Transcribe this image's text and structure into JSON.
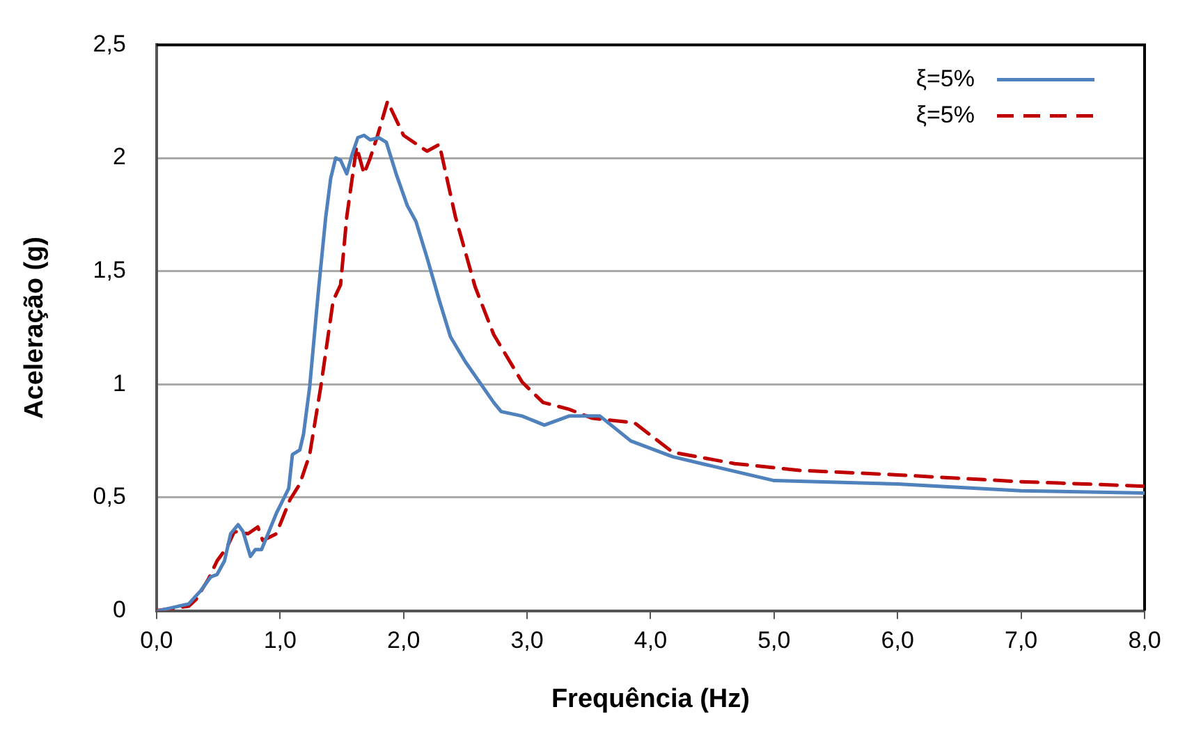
{
  "chart_data": {
    "type": "line",
    "xlabel": "Frequência (Hz)",
    "ylabel": "Aceleração (g)",
    "xlim": [
      0,
      8
    ],
    "ylim": [
      0,
      2.5
    ],
    "xticks": [
      {
        "value": 0,
        "label": "0,0"
      },
      {
        "value": 1,
        "label": "1,0"
      },
      {
        "value": 2,
        "label": "2,0"
      },
      {
        "value": 3,
        "label": "3,0"
      },
      {
        "value": 4,
        "label": "4,0"
      },
      {
        "value": 5,
        "label": "5,0"
      },
      {
        "value": 6,
        "label": "6,0"
      },
      {
        "value": 7,
        "label": "7,0"
      },
      {
        "value": 8,
        "label": "8,0"
      }
    ],
    "yticks": [
      0,
      {
        "value": 0.5,
        "label": "0,5"
      },
      1,
      {
        "value": 1.5,
        "label": "1,5"
      },
      2,
      {
        "value": 2.5,
        "label": "2,5"
      }
    ],
    "grid": "y",
    "legend": "top right",
    "marker": "none",
    "series": [
      {
        "name": "ξ=5%",
        "color": "#4f81bd",
        "line_style": "solid",
        "x": [
          0.015,
          0.26,
          0.36,
          0.44,
          0.49,
          0.55,
          0.6,
          0.66,
          0.7,
          0.76,
          0.8,
          0.85,
          0.97,
          1.07,
          1.1,
          1.16,
          1.19,
          1.24,
          1.31,
          1.37,
          1.41,
          1.45,
          1.49,
          1.54,
          1.58,
          1.63,
          1.68,
          1.73,
          1.8,
          1.86,
          1.94,
          2.03,
          2.1,
          2.19,
          2.29,
          2.38,
          2.5,
          2.73,
          2.79,
          2.96,
          3.14,
          3.34,
          3.59,
          3.84,
          4.18,
          4.49,
          5.0,
          6.0,
          7.0,
          8.0
        ],
        "values": [
          0,
          0.03,
          0.09,
          0.15,
          0.16,
          0.22,
          0.34,
          0.38,
          0.35,
          0.24,
          0.27,
          0.27,
          0.43,
          0.54,
          0.69,
          0.71,
          0.78,
          0.99,
          1.41,
          1.74,
          1.91,
          2.0,
          1.99,
          1.93,
          2.01,
          2.09,
          2.1,
          2.08,
          2.09,
          2.07,
          1.93,
          1.79,
          1.72,
          1.56,
          1.37,
          1.21,
          1.1,
          0.92,
          0.88,
          0.86,
          0.82,
          0.86,
          0.86,
          0.75,
          0.68,
          0.64,
          0.575,
          0.56,
          0.53,
          0.52
        ]
      },
      {
        "name": "ξ=5%",
        "color": "#c00000",
        "line_style": "dashed",
        "x": [
          0,
          0.26,
          0.32,
          0.42,
          0.49,
          0.57,
          0.63,
          0.74,
          0.82,
          0.86,
          0.97,
          1.08,
          1.16,
          1.24,
          1.33,
          1.43,
          1.49,
          1.54,
          1.62,
          1.68,
          1.73,
          1.79,
          1.87,
          2.0,
          2.19,
          2.29,
          2.42,
          2.58,
          2.73,
          2.96,
          3.13,
          3.34,
          3.53,
          3.87,
          4.18,
          4.68,
          5.21,
          6.0,
          7.0,
          8.0
        ],
        "values": [
          0,
          0.02,
          0.05,
          0.14,
          0.22,
          0.28,
          0.35,
          0.34,
          0.37,
          0.31,
          0.34,
          0.49,
          0.56,
          0.69,
          0.99,
          1.37,
          1.44,
          1.74,
          2.05,
          1.93,
          2.0,
          2.1,
          2.25,
          2.1,
          2.03,
          2.06,
          1.74,
          1.43,
          1.22,
          1.01,
          0.92,
          0.89,
          0.85,
          0.83,
          0.7,
          0.65,
          0.62,
          0.6,
          0.57,
          0.55
        ]
      }
    ]
  }
}
